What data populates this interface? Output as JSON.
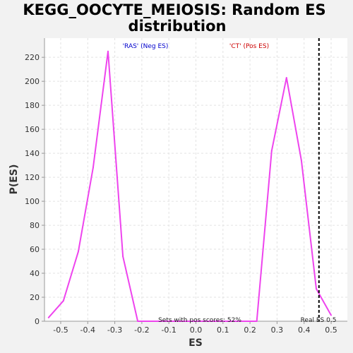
{
  "chart_data": {
    "type": "line",
    "title_line1": "KEGG_OOCYTE_MEIOSIS: Random ES",
    "title_line2": "distribution",
    "xlabel": "ES",
    "ylabel": "P(ES)",
    "xlim": [
      -0.56,
      0.56
    ],
    "ylim": [
      0,
      236
    ],
    "x_ticks": [
      -0.5,
      -0.4,
      -0.3,
      -0.2,
      -0.1,
      0.0,
      0.1,
      0.2,
      0.3,
      0.4,
      0.5
    ],
    "x_tick_labels": [
      "-0.5",
      "-0.4",
      "-0.3",
      "-0.2",
      "-0.1",
      "0.0",
      "0.1",
      "0.2",
      "0.3",
      "0.4",
      "0.5"
    ],
    "y_ticks": [
      0,
      20,
      40,
      60,
      80,
      100,
      120,
      140,
      160,
      180,
      200,
      220
    ],
    "y_tick_labels": [
      "0",
      "20",
      "40",
      "60",
      "80",
      "100",
      "120",
      "140",
      "160",
      "180",
      "200",
      "220"
    ],
    "grid": true,
    "line_color": "#ee44ee",
    "series": [
      {
        "x": [
          -0.545,
          -0.49,
          -0.435,
          -0.38,
          -0.325,
          -0.27,
          -0.215,
          -0.16,
          -0.105,
          -0.05,
          0.005,
          0.06,
          0.115,
          0.17,
          0.225,
          0.28,
          0.335,
          0.39,
          0.445,
          0.5
        ],
        "y": [
          3,
          17,
          58,
          128,
          225,
          54,
          0,
          0,
          0,
          0,
          0,
          0,
          0,
          0,
          0,
          142,
          203,
          134,
          27,
          5
        ]
      }
    ],
    "real_es": 0.455,
    "annotations": {
      "neg_label": "'RAS' (Neg ES)",
      "neg_color": "#0000cc",
      "pos_label": "'CT' (Pos ES)",
      "pos_color": "#cc0000",
      "pos_scores": "Sets with pos scores: 52%",
      "real_es_label": "Real ES 0.5"
    }
  }
}
